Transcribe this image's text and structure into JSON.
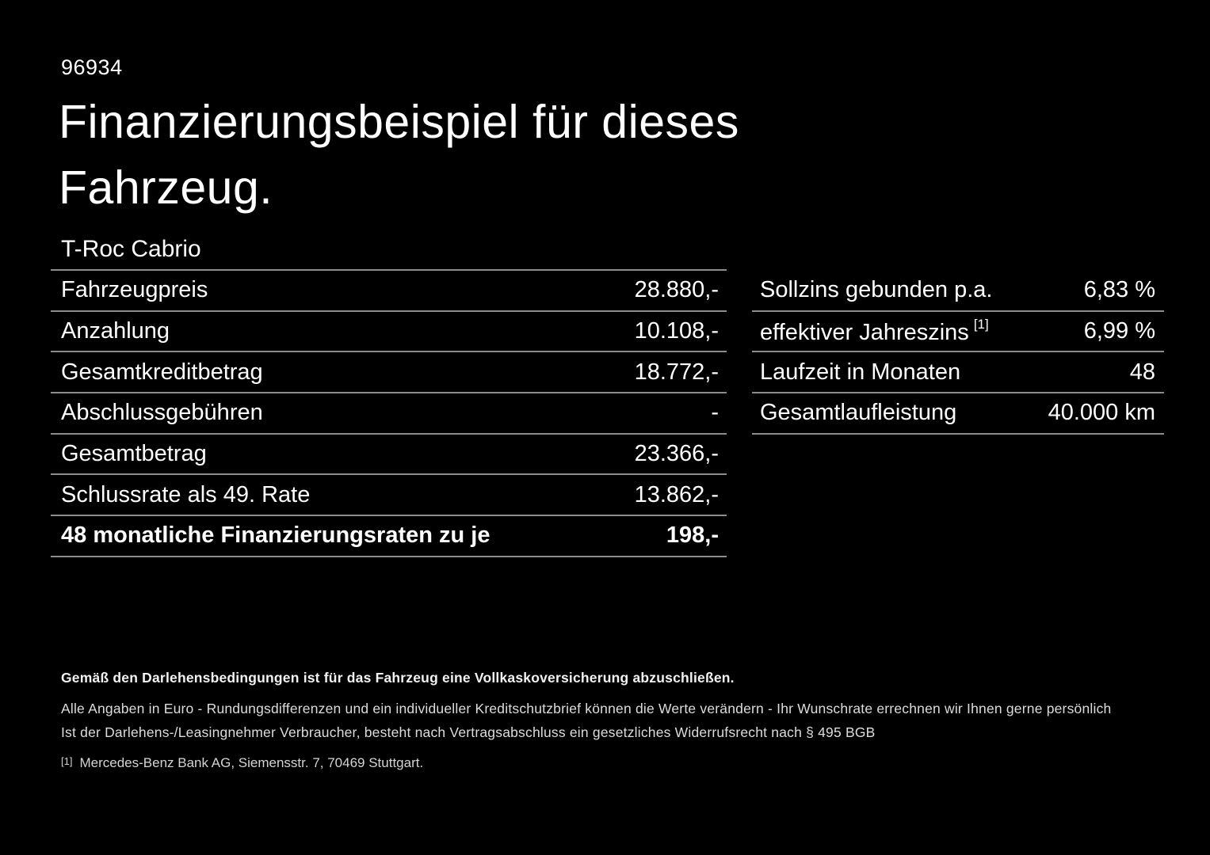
{
  "page": {
    "doc_number": "96934",
    "title": "Finanzierungsbeispiel für dieses Fahrzeug.",
    "vehicle_model": "T-Roc Cabrio"
  },
  "finance_table": {
    "rows": [
      {
        "label": "Fahrzeugpreis",
        "value": "28.880,-"
      },
      {
        "label": "Anzahlung",
        "value": "10.108,-"
      },
      {
        "label": "Gesamtkreditbetrag",
        "value": "18.772,-"
      },
      {
        "label": "Abschlussgebühren",
        "value": "-"
      },
      {
        "label": "Gesamtbetrag",
        "value": "23.366,-"
      },
      {
        "label": "Schlussrate als 49. Rate",
        "value": "13.862,-"
      },
      {
        "label": "48 monatliche Finanzierungsraten zu je",
        "value": "198,-"
      }
    ]
  },
  "conditions_table": {
    "rows": [
      {
        "label": "Sollzins gebunden p.a.",
        "value": "6,83 %"
      },
      {
        "label": "effektiver Jahreszins",
        "footnote_marker": "[1]",
        "value": "6,99 %"
      },
      {
        "label": "Laufzeit in Monaten",
        "value": "48"
      },
      {
        "label": "Gesamtlaufleistung",
        "value": "40.000 km"
      }
    ]
  },
  "footer": {
    "insurance_note": "Gemäß den Darlehensbedingungen ist für das Fahrzeug eine Vollkaskoversicherung abzuschließen.",
    "note_line_1": "Alle Angaben in Euro - Rundungsdifferenzen und ein individueller Kreditschutzbrief können die Werte verändern - Ihr Wunschrate errechnen wir Ihnen gerne persönlich",
    "note_line_2": "Ist der Darlehens-/Leasingnehmer Verbraucher, besteht nach Vertragsabschluss ein gesetzliches Widerrufsrecht nach § 495 BGB",
    "footnote_marker": "[1]",
    "footnote_text": "Mercedes-Benz Bank AG, Siemensstr. 7, 70469 Stuttgart."
  },
  "colors": {
    "background": "#000000",
    "text": "#ffffff",
    "divider": "#8c8c8c",
    "footer_text": "#dcdcdc"
  }
}
